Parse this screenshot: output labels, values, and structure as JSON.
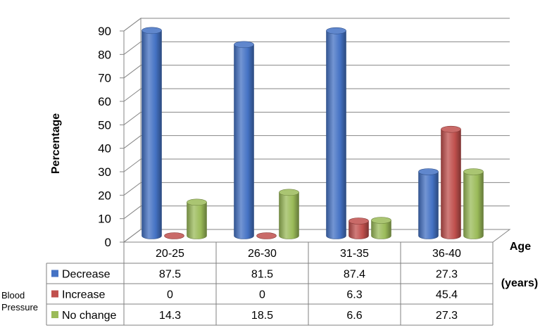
{
  "chart_data": {
    "type": "bar",
    "categories": [
      "20-25",
      "26-30",
      "31-35",
      "36-40"
    ],
    "series": [
      {
        "name": "Decrease",
        "values": [
          87.5,
          81.5,
          87.4,
          27.3
        ],
        "color": "#4472C4"
      },
      {
        "name": "Increase",
        "values": [
          0,
          0,
          6.3,
          45.4
        ],
        "color": "#C0504D"
      },
      {
        "name": "No change",
        "values": [
          14.3,
          18.5,
          6.6,
          27.3
        ],
        "color": "#9BBB59"
      }
    ],
    "ylabel": "Percentage",
    "xlabel": [
      "Age",
      "(years)"
    ],
    "row_group_label": [
      "Blood",
      "Pressure"
    ],
    "yticks": [
      0,
      10,
      20,
      30,
      40,
      50,
      60,
      70,
      80,
      90
    ],
    "ylim": [
      0,
      90
    ],
    "grid": true,
    "legend": "data-table",
    "style": "3d-cylinder"
  }
}
